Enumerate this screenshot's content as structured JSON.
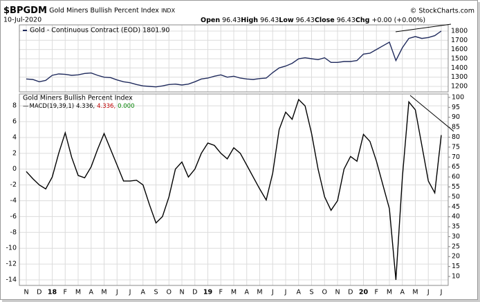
{
  "header": {
    "symbol": "$BPGDM",
    "name": "Gold Miners Bullish Percent Index",
    "exchange": "INDX",
    "source": "© StockCharts.com",
    "date": "10-Jul-2020",
    "quote": [
      {
        "label": "Open",
        "value": 96.43
      },
      {
        "label": "High",
        "value": 96.43
      },
      {
        "label": "Low",
        "value": 96.43
      },
      {
        "label": "Close",
        "value": 96.43
      }
    ],
    "change": {
      "label": "Chg",
      "value": "+0.00 (+0.00%)"
    }
  },
  "chart_data": [
    {
      "type": "line",
      "series": [
        {
          "name": "Gold - Continuous Contract (EOD) 1801.90",
          "color": "#1f2a5c",
          "values": [
            1280,
            1275,
            1250,
            1265,
            1320,
            1335,
            1330,
            1320,
            1325,
            1340,
            1345,
            1320,
            1300,
            1295,
            1270,
            1250,
            1240,
            1220,
            1205,
            1200,
            1195,
            1205,
            1220,
            1225,
            1215,
            1225,
            1250,
            1280,
            1290,
            1310,
            1325,
            1300,
            1310,
            1290,
            1280,
            1275,
            1285,
            1290,
            1350,
            1400,
            1420,
            1450,
            1500,
            1510,
            1500,
            1490,
            1510,
            1460,
            1460,
            1470,
            1470,
            1480,
            1550,
            1560,
            1600,
            1640,
            1680,
            1480,
            1620,
            1720,
            1740,
            1720,
            1730,
            1750,
            1800
          ]
        }
      ],
      "ylim": [
        1140,
        1867
      ],
      "yticks": [
        1200,
        1300,
        1400,
        1500,
        1600,
        1700,
        1800
      ],
      "grid": true
    },
    {
      "type": "line",
      "title": "Gold Miners Bullish Percent Index",
      "categories": [
        "N",
        null,
        "D",
        null,
        "18",
        null,
        "F",
        null,
        "M",
        null,
        "A",
        null,
        "M",
        null,
        "J",
        null,
        "J",
        null,
        "A",
        null,
        "S",
        null,
        "O",
        null,
        "N",
        null,
        "D",
        null,
        "19",
        null,
        "F",
        null,
        "M",
        null,
        "A",
        null,
        "M",
        null,
        "J",
        null,
        "J",
        null,
        "A",
        null,
        "S",
        null,
        "O",
        null,
        "N",
        null,
        "D",
        null,
        "20",
        null,
        "F",
        null,
        "M",
        null,
        "A",
        null,
        "M",
        null,
        "J",
        null,
        "J"
      ],
      "series": [
        {
          "name": "MACD(19,39,1)",
          "color": "#000000",
          "values": [
            -0.3,
            -1.2,
            -2.0,
            -2.5,
            -1.0,
            2.0,
            4.6,
            1.5,
            -0.8,
            -1.1,
            0.3,
            2.5,
            4.5,
            2.5,
            0.5,
            -1.5,
            -1.5,
            -1.4,
            -2.0,
            -4.5,
            -6.8,
            -6.0,
            -3.5,
            0.0,
            0.9,
            -1.0,
            0.0,
            2.0,
            3.3,
            3.0,
            2.0,
            1.3,
            2.7,
            2.0,
            0.5,
            -1.0,
            -2.5,
            -3.9,
            -0.5,
            5.0,
            7.2,
            6.3,
            8.8,
            8.0,
            4.5,
            0.0,
            -3.5,
            -5.2,
            -4.0,
            0.0,
            1.6,
            1.0,
            4.4,
            3.5,
            1.0,
            -2.0,
            -5.0,
            -14.0,
            -1.0,
            8.5,
            7.5,
            3.0,
            -1.5,
            -3.0,
            4.3
          ]
        }
      ],
      "legend_values": [
        {
          "text": "4.336,",
          "color": "#000000"
        },
        {
          "text": "4.336,",
          "color": "#c00000"
        },
        {
          "text": "0.000",
          "color": "#008000"
        }
      ],
      "ylim": [
        -14.7,
        9.5
      ],
      "yticks": [
        -14,
        -12,
        -10,
        -8,
        -6,
        -4,
        -2,
        0,
        2,
        4,
        6,
        8
      ],
      "y2lim": [
        5.5,
        101.7
      ],
      "y2ticks": [
        10,
        15,
        20,
        25,
        30,
        35,
        40,
        45,
        50,
        55,
        60,
        65,
        70,
        75,
        80,
        85,
        90,
        95,
        100
      ],
      "grid": true
    }
  ]
}
